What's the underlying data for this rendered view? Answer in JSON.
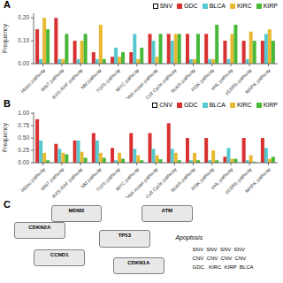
{
  "chart_data": [
    {
      "type": "bar",
      "title": "A",
      "annotations": [
        "SNV"
      ],
      "categories": [
        "Hippo pathway",
        "WNT pathway",
        "RAS-RAF pathway",
        "Nkf pathway",
        "TGFb pathway",
        "MYC pathway",
        "DNA repair pathway",
        "Cell Cycle pathway",
        "Notch pathway",
        "PI3K pathway",
        "VHL pathway",
        "p53/Rb pathway",
        "MAPK pathway"
      ],
      "series": [
        {
          "name": "GDC",
          "color": "#d93030",
          "values": [
            0.15,
            0.2,
            0.1,
            0.05,
            0.03,
            0.05,
            0.13,
            0.13,
            0.13,
            0.13,
            0.1,
            0.1,
            0.1
          ]
        },
        {
          "name": "BLCA",
          "color": "#55c8d0",
          "values": [
            0.02,
            0.02,
            0.02,
            0.02,
            0.07,
            0.13,
            0.1,
            0.1,
            0.02,
            0.02,
            0.02,
            0.02,
            0.13
          ]
        },
        {
          "name": "KIRC",
          "color": "#e8b830",
          "values": [
            0.2,
            0.02,
            0.1,
            0.17,
            0.03,
            0.02,
            0.03,
            0.13,
            0.02,
            0.02,
            0.13,
            0.14,
            0.15
          ]
        },
        {
          "name": "KIRP",
          "color": "#48b838",
          "values": [
            0.15,
            0.13,
            0.13,
            0.02,
            0.05,
            0.07,
            0.13,
            0.13,
            0.13,
            0.17,
            0.17,
            0.1,
            0.1
          ]
        }
      ],
      "ylabel": "Frequency",
      "ylim": [
        0.0,
        0.22
      ],
      "yticks": [
        {
          "value": 0.0,
          "label": "0.00"
        },
        {
          "value": 0.1,
          "label": "0.10"
        },
        {
          "value": 0.2,
          "label": "0.20"
        }
      ],
      "grid": false,
      "legend": "upper right"
    },
    {
      "type": "bar",
      "title": "B",
      "annotations": [
        "CNV"
      ],
      "categories": [
        "Hippo pathway",
        "WNT pathway",
        "RAS-RAF pathway",
        "Nkf pathway",
        "TGFb pathway",
        "MYC pathway",
        "DNA repair pathway",
        "Cell Cycle pathway",
        "Notch pathway",
        "PI3K pathway",
        "VHL pathway",
        "p53/Rb pathway",
        "MAPK pathway"
      ],
      "series": [
        {
          "name": "GDC",
          "color": "#d93030",
          "values": [
            0.88,
            0.38,
            0.45,
            0.6,
            0.3,
            0.6,
            0.6,
            0.8,
            0.5,
            0.5,
            0.12,
            0.5,
            0.5
          ]
        },
        {
          "name": "BLCA",
          "color": "#55c8d0",
          "values": [
            0.45,
            0.28,
            0.45,
            0.45,
            0.05,
            0.28,
            0.28,
            0.28,
            0.05,
            0.05,
            0.3,
            0.05,
            0.3
          ]
        },
        {
          "name": "KIRC",
          "color": "#e8b830",
          "values": [
            0.2,
            0.2,
            0.22,
            0.2,
            0.2,
            0.15,
            0.15,
            0.2,
            0.2,
            0.25,
            0.08,
            0.15,
            0.08
          ]
        },
        {
          "name": "KIRP",
          "color": "#48b838",
          "values": [
            0.05,
            0.17,
            0.1,
            0.1,
            0.08,
            0.05,
            0.07,
            0.05,
            0.05,
            0.05,
            0.08,
            0.02,
            0.12
          ]
        }
      ],
      "ylabel": "Frequency",
      "ylim": [
        0.0,
        1.02
      ],
      "yticks": [
        {
          "value": 0.0,
          "label": "0.00"
        },
        {
          "value": 0.25,
          "label": "0.25"
        },
        {
          "value": 0.5,
          "label": "0.50"
        },
        {
          "value": 0.75,
          "label": "0.75"
        },
        {
          "value": 1.0,
          "label": "1.00"
        }
      ],
      "grid": false,
      "legend": "upper right"
    },
    {
      "type": "diagram",
      "title": "C",
      "annotations": [
        "MDM2",
        "ATM",
        "TP53",
        "CDKN2A",
        "CCND1",
        "CDKN1A",
        "Apoptosis",
        "SNV  SNV  SNV  SNV",
        "CNV  CNV  CNV  CNV",
        "GDC   KIRC  KIRP  BLCA"
      ]
    }
  ]
}
